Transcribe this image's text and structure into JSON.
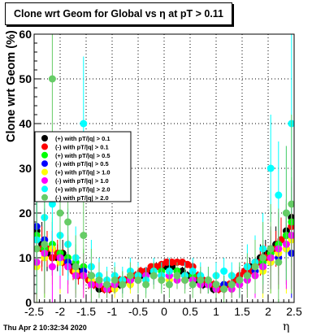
{
  "chart_data": {
    "type": "scatter",
    "title": "Clone wrt Geom for Global vs   η at pT > 0.11",
    "xlabel": "η",
    "ylabel": "Clone wrt Geom (%)",
    "xlim": [
      -2.5,
      2.5
    ],
    "ylim": [
      0,
      60
    ],
    "x_ticks": [
      "-2.5",
      "-2",
      "-1.5",
      "-1",
      "-0.5",
      "0",
      "0.5",
      "1",
      "1.5",
      "2",
      "2.5"
    ],
    "y_ticks": [
      "0",
      "10",
      "20",
      "30",
      "40",
      "50",
      "60"
    ],
    "grid": true,
    "legend_position": "left-middle",
    "series": [
      {
        "name": "(+) with pT/|q| > 0.1",
        "color": "#000000",
        "x": [
          -2.45,
          -2.35,
          -2.25,
          -2.15,
          -2.05,
          -1.95,
          -1.85,
          -1.75,
          -1.65,
          -1.55,
          -1.45,
          -1.35,
          -1.25,
          -1.15,
          -1.05,
          -0.95,
          -0.85,
          -0.75,
          -0.65,
          -0.55,
          -0.45,
          -0.35,
          -0.25,
          -0.15,
          -0.05,
          0.05,
          0.15,
          0.25,
          0.35,
          0.45,
          0.55,
          0.65,
          0.75,
          0.85,
          0.95,
          1.05,
          1.15,
          1.25,
          1.35,
          1.45,
          1.55,
          1.65,
          1.75,
          1.85,
          1.95,
          2.05,
          2.15,
          2.25,
          2.35,
          2.45
        ],
        "y": [
          16,
          13,
          11,
          12,
          10,
          11,
          9,
          8,
          7,
          6,
          5,
          4,
          3,
          3,
          3,
          4,
          4,
          5,
          5,
          6,
          6,
          7,
          7,
          8,
          8,
          8,
          8,
          7,
          7,
          6,
          5,
          5,
          4,
          4,
          3,
          3,
          3,
          4,
          5,
          6,
          7,
          8,
          9,
          10,
          11,
          12,
          13,
          14,
          16,
          19
        ],
        "yerr": [
          6,
          5,
          4,
          4,
          3,
          3,
          3,
          2,
          2,
          2,
          2,
          1,
          1,
          1,
          1,
          1,
          1,
          1,
          1,
          1,
          1,
          1,
          1,
          1,
          1,
          1,
          1,
          1,
          1,
          1,
          1,
          1,
          1,
          1,
          1,
          1,
          1,
          1,
          1,
          2,
          2,
          2,
          3,
          3,
          3,
          4,
          4,
          5,
          6,
          7
        ]
      },
      {
        "name": "(-) with pT/|q| > 0.1",
        "color": "#ff0000",
        "x": [
          -2.45,
          -2.35,
          -2.25,
          -2.15,
          -2.05,
          -1.95,
          -1.85,
          -1.75,
          -1.65,
          -1.55,
          -1.45,
          -1.35,
          -1.25,
          -1.15,
          -1.05,
          -0.95,
          -0.85,
          -0.75,
          -0.65,
          -0.55,
          -0.45,
          -0.35,
          -0.25,
          -0.15,
          -0.05,
          0.05,
          0.15,
          0.25,
          0.35,
          0.45,
          0.55,
          0.65,
          0.75,
          0.85,
          0.95,
          1.05,
          1.15,
          1.25,
          1.35,
          1.45,
          1.55,
          1.65,
          1.75,
          1.85,
          1.95,
          2.05,
          2.15,
          2.25,
          2.35,
          2.45
        ],
        "y": [
          14,
          12,
          12,
          10,
          11,
          9,
          9,
          7,
          6,
          6,
          5,
          4,
          4,
          3,
          3,
          4,
          5,
          5,
          6,
          6,
          7,
          7,
          8,
          8,
          8.5,
          9,
          9,
          9,
          9,
          8.5,
          8,
          6,
          5,
          4,
          4,
          3,
          3,
          4,
          5,
          6,
          7,
          7,
          8,
          9,
          10,
          11,
          12,
          14,
          15,
          17
        ],
        "yerr": [
          6,
          5,
          4,
          4,
          3,
          3,
          3,
          2,
          2,
          2,
          2,
          1,
          1,
          1,
          1,
          1,
          1,
          1,
          1,
          1,
          1,
          1,
          0.5,
          0.5,
          0.5,
          0.5,
          0.5,
          0.5,
          0.5,
          0.5,
          1,
          1,
          1,
          1,
          1,
          1,
          1,
          1,
          1,
          2,
          2,
          2,
          3,
          3,
          3,
          4,
          4,
          5,
          6,
          7
        ]
      },
      {
        "name": "(+) with pT/|q| > 0.5",
        "color": "#00ff00",
        "x": [
          -2.45,
          -2.3,
          -2.15,
          -2.0,
          -1.85,
          -1.7,
          -1.55,
          -1.4,
          -1.25,
          -1.1,
          -0.95,
          -0.8,
          -0.65,
          -0.5,
          -0.35,
          -0.2,
          -0.05,
          0.1,
          0.25,
          0.4,
          0.55,
          0.7,
          0.85,
          1.0,
          1.15,
          1.3,
          1.45,
          1.6,
          1.75,
          1.9,
          2.05,
          2.2,
          2.35,
          2.45
        ],
        "y": [
          15,
          12,
          13,
          11,
          10,
          9,
          8,
          6,
          5,
          4,
          4,
          5,
          5,
          6,
          6,
          7,
          7,
          7,
          7,
          6,
          6,
          5,
          4,
          4,
          4,
          4,
          5,
          6,
          8,
          9,
          11,
          13,
          15,
          18
        ],
        "yerr": [
          8,
          7,
          6,
          5,
          5,
          4,
          4,
          3,
          2,
          2,
          2,
          2,
          2,
          2,
          2,
          2,
          2,
          2,
          2,
          2,
          2,
          2,
          2,
          2,
          2,
          2,
          2,
          3,
          4,
          5,
          6,
          7,
          8,
          10
        ]
      },
      {
        "name": "(-) with pT/|q| > 0.5",
        "color": "#0000ff",
        "x": [
          -2.45,
          -2.3,
          -2.15,
          -2.0,
          -1.85,
          -1.7,
          -1.55,
          -1.4,
          -1.25,
          -1.1,
          -0.95,
          -0.8,
          -0.65,
          -0.5,
          -0.35,
          -0.2,
          -0.05,
          0.1,
          0.25,
          0.4,
          0.55,
          0.7,
          0.85,
          1.0,
          1.15,
          1.3,
          1.45,
          1.6,
          1.75,
          1.9,
          2.05,
          2.2,
          2.35,
          2.45
        ],
        "y": [
          17,
          14,
          12,
          10,
          9,
          8,
          7,
          6,
          5,
          4,
          4,
          4,
          5,
          5,
          6,
          6,
          6,
          6,
          6,
          6,
          5,
          5,
          4,
          4,
          4,
          4,
          5,
          6,
          7,
          8,
          9,
          10,
          12,
          11
        ],
        "yerr": [
          8,
          7,
          6,
          5,
          5,
          4,
          4,
          3,
          2,
          2,
          2,
          2,
          2,
          2,
          2,
          2,
          2,
          2,
          2,
          2,
          2,
          2,
          2,
          2,
          2,
          2,
          2,
          3,
          4,
          5,
          6,
          7,
          8,
          10
        ]
      },
      {
        "name": "(+) with pT/|q| > 1.0",
        "color": "#ffff00",
        "x": [
          -2.45,
          -2.3,
          -2.15,
          -2.0,
          -1.85,
          -1.7,
          -1.55,
          -1.4,
          -1.25,
          -1.1,
          -0.95,
          -0.8,
          -0.65,
          -0.5,
          -0.35,
          -0.2,
          -0.05,
          0.1,
          0.25,
          0.4,
          0.55,
          0.7,
          0.85,
          1.0,
          1.15,
          1.3,
          1.45,
          1.6,
          1.75,
          1.9,
          2.05,
          2.2,
          2.35,
          2.45
        ],
        "y": [
          8,
          10,
          12,
          9,
          8,
          7,
          6,
          5,
          4,
          3,
          3,
          4,
          4,
          5,
          5,
          6,
          5,
          5,
          6,
          5,
          5,
          4,
          4,
          3,
          3,
          3,
          4,
          5,
          6,
          7,
          9,
          11,
          12,
          14
        ],
        "yerr": [
          10,
          9,
          8,
          7,
          6,
          5,
          5,
          4,
          3,
          2,
          2,
          2,
          2,
          2,
          2,
          2,
          2,
          2,
          2,
          2,
          2,
          2,
          2,
          2,
          2,
          2,
          3,
          4,
          5,
          6,
          7,
          8,
          10,
          12
        ]
      },
      {
        "name": "(-) with pT/|q| > 1.0",
        "color": "#ff00ff",
        "x": [
          -2.45,
          -2.3,
          -2.15,
          -2.0,
          -1.85,
          -1.7,
          -1.55,
          -1.4,
          -1.25,
          -1.1,
          -0.95,
          -0.8,
          -0.65,
          -0.5,
          -0.35,
          -0.2,
          -0.05,
          0.1,
          0.25,
          0.4,
          0.55,
          0.7,
          0.85,
          1.0,
          1.15,
          1.3,
          1.45,
          1.6,
          1.75,
          1.9,
          2.05,
          2.2,
          2.35,
          2.45
        ],
        "y": [
          9,
          11,
          8,
          10,
          8,
          6,
          6,
          4,
          4,
          3,
          4,
          4,
          5,
          5,
          6,
          6,
          6,
          6,
          5,
          5,
          5,
          4,
          4,
          3,
          3,
          3,
          4,
          5,
          6,
          8,
          10,
          12,
          13,
          15
        ],
        "yerr": [
          10,
          9,
          8,
          7,
          6,
          5,
          5,
          4,
          3,
          2,
          2,
          2,
          2,
          2,
          2,
          2,
          2,
          2,
          2,
          2,
          2,
          2,
          2,
          2,
          2,
          2,
          3,
          4,
          5,
          6,
          7,
          8,
          10,
          12
        ]
      },
      {
        "name": "(+) with pT/|q| > 2.0",
        "color": "#00ffff",
        "x": [
          -2.45,
          -2.3,
          -2.15,
          -2.0,
          -1.85,
          -1.7,
          -1.55,
          -1.4,
          -1.25,
          -1.1,
          -0.95,
          -0.8,
          -0.65,
          -0.5,
          -0.35,
          -0.2,
          -0.05,
          0.1,
          0.25,
          0.4,
          0.55,
          0.7,
          0.85,
          1.0,
          1.15,
          1.3,
          1.45,
          1.6,
          1.75,
          1.9,
          2.05,
          2.2,
          2.35,
          2.45
        ],
        "y": [
          14,
          19,
          22,
          15,
          13,
          10,
          40,
          8,
          6,
          5,
          6,
          5,
          7,
          6,
          5,
          7,
          6,
          7,
          6,
          6,
          7,
          6,
          5,
          6,
          7,
          6,
          5,
          8,
          9,
          12,
          30,
          24,
          20,
          40
        ],
        "yerr": [
          12,
          12,
          10,
          9,
          8,
          7,
          15,
          6,
          4,
          3,
          3,
          3,
          3,
          3,
          3,
          3,
          3,
          3,
          3,
          3,
          3,
          3,
          3,
          3,
          3,
          3,
          4,
          5,
          6,
          8,
          12,
          12,
          15,
          20
        ]
      },
      {
        "name": "(-) with pT/|q| > 2.0",
        "color": "#66cc66",
        "x": [
          -2.45,
          -2.3,
          -2.15,
          -2.0,
          -1.85,
          -1.7,
          -1.55,
          -1.4,
          -1.25,
          -1.1,
          -0.95,
          -0.8,
          -0.65,
          -0.5,
          -0.35,
          -0.2,
          -0.05,
          0.1,
          0.25,
          0.4,
          0.55,
          0.7,
          0.85,
          1.0,
          1.15,
          1.3,
          1.45,
          1.6,
          1.75,
          1.9,
          2.05,
          2.2,
          2.35,
          2.45
        ],
        "y": [
          12,
          13,
          50,
          20,
          18,
          8,
          15,
          6,
          5,
          4,
          5,
          4,
          6,
          5,
          4,
          6,
          5,
          4,
          6,
          5,
          4,
          5,
          5,
          4,
          3,
          4,
          5,
          6,
          8,
          10,
          12,
          9,
          20,
          22
        ],
        "yerr": [
          12,
          12,
          14,
          10,
          9,
          7,
          10,
          6,
          4,
          3,
          3,
          3,
          3,
          3,
          3,
          3,
          3,
          3,
          3,
          3,
          3,
          3,
          3,
          3,
          3,
          3,
          4,
          5,
          6,
          8,
          10,
          12,
          15,
          20
        ]
      }
    ]
  },
  "footer": {
    "date": "Thu Apr  2 10:32:34 2020"
  }
}
